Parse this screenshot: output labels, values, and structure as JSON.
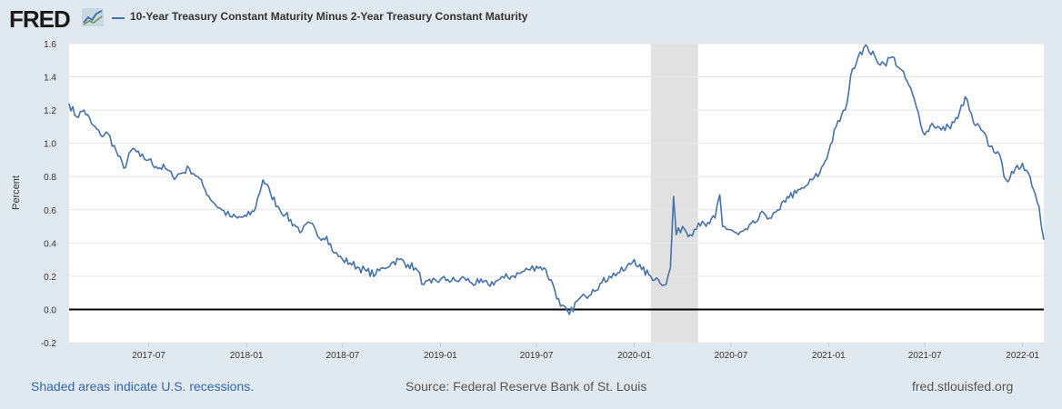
{
  "header": {
    "logo_text": "FRED",
    "logo_icon": "line-chart-icon",
    "legend_label": "10-Year Treasury Constant Maturity Minus 2-Year Treasury Constant Maturity"
  },
  "footer": {
    "recession_note": "Shaded areas indicate U.S. recessions.",
    "source": "Source: Federal Reserve Bank of St. Louis",
    "site": "fred.stlouisfed.org"
  },
  "colors": {
    "background": "#e1e9f0",
    "plot_background": "#ffffff",
    "series": "#4572a7",
    "recession": "#e1e1e1",
    "gridline": "#e6e6e6",
    "zero_line": "#000000"
  },
  "chart_data": {
    "type": "line",
    "title": "",
    "xlabel": "",
    "ylabel": "Percent",
    "ylim": [
      -0.2,
      1.6
    ],
    "xlim": [
      "2017-02-01",
      "2022-02-10"
    ],
    "grid": "horizontal",
    "yticks": [
      "-0.2",
      "0.0",
      "0.2",
      "0.4",
      "0.6",
      "0.8",
      "1.0",
      "1.2",
      "1.4",
      "1.6"
    ],
    "xticks": [
      {
        "date": "2017-07-01",
        "label": "2017-07"
      },
      {
        "date": "2018-01-01",
        "label": "2018-01"
      },
      {
        "date": "2018-07-01",
        "label": "2018-07"
      },
      {
        "date": "2019-01-01",
        "label": "2019-01"
      },
      {
        "date": "2019-07-01",
        "label": "2019-07"
      },
      {
        "date": "2020-01-01",
        "label": "2020-01"
      },
      {
        "date": "2020-07-01",
        "label": "2020-07"
      },
      {
        "date": "2021-01-01",
        "label": "2021-01"
      },
      {
        "date": "2021-07-01",
        "label": "2021-07"
      },
      {
        "date": "2022-01-01",
        "label": "2022-01"
      }
    ],
    "recessions": [
      {
        "start": "2020-02-01",
        "end": "2020-04-30"
      }
    ],
    "reference_line": 0,
    "series": [
      {
        "name": "10-Year Treasury Constant Maturity Minus 2-Year Treasury Constant Maturity",
        "x": [
          "2017-02-01",
          "2017-02-15",
          "2017-03-01",
          "2017-03-15",
          "2017-04-01",
          "2017-04-15",
          "2017-05-01",
          "2017-05-15",
          "2017-06-01",
          "2017-06-15",
          "2017-07-01",
          "2017-07-15",
          "2017-08-01",
          "2017-08-15",
          "2017-09-01",
          "2017-09-15",
          "2017-10-01",
          "2017-10-15",
          "2017-11-01",
          "2017-11-15",
          "2017-12-01",
          "2017-12-15",
          "2018-01-01",
          "2018-01-15",
          "2018-02-01",
          "2018-02-15",
          "2018-03-01",
          "2018-03-15",
          "2018-04-01",
          "2018-04-15",
          "2018-05-01",
          "2018-05-15",
          "2018-06-01",
          "2018-06-15",
          "2018-07-01",
          "2018-07-15",
          "2018-08-01",
          "2018-08-15",
          "2018-09-01",
          "2018-09-15",
          "2018-10-01",
          "2018-10-15",
          "2018-11-01",
          "2018-11-15",
          "2018-12-01",
          "2018-12-15",
          "2019-01-01",
          "2019-01-15",
          "2019-02-01",
          "2019-02-15",
          "2019-03-01",
          "2019-03-15",
          "2019-04-01",
          "2019-04-15",
          "2019-05-01",
          "2019-05-15",
          "2019-06-01",
          "2019-06-15",
          "2019-07-01",
          "2019-07-15",
          "2019-08-01",
          "2019-08-15",
          "2019-09-01",
          "2019-09-15",
          "2019-10-01",
          "2019-10-15",
          "2019-11-01",
          "2019-11-15",
          "2019-12-01",
          "2019-12-15",
          "2020-01-01",
          "2020-01-15",
          "2020-02-01",
          "2020-02-15",
          "2020-03-01",
          "2020-03-09",
          "2020-03-15",
          "2020-03-20",
          "2020-04-01",
          "2020-04-15",
          "2020-05-01",
          "2020-05-15",
          "2020-06-01",
          "2020-06-10",
          "2020-06-15",
          "2020-07-01",
          "2020-07-15",
          "2020-08-01",
          "2020-08-15",
          "2020-09-01",
          "2020-09-15",
          "2020-10-01",
          "2020-10-15",
          "2020-11-01",
          "2020-11-15",
          "2020-12-01",
          "2020-12-15",
          "2021-01-01",
          "2021-01-15",
          "2021-02-01",
          "2021-02-15",
          "2021-03-01",
          "2021-03-15",
          "2021-04-01",
          "2021-04-15",
          "2021-05-01",
          "2021-05-15",
          "2021-06-01",
          "2021-06-15",
          "2021-07-01",
          "2021-07-15",
          "2021-08-01",
          "2021-08-15",
          "2021-09-01",
          "2021-09-15",
          "2021-10-01",
          "2021-10-15",
          "2021-11-01",
          "2021-11-15",
          "2021-12-01",
          "2021-12-15",
          "2022-01-01",
          "2022-01-15",
          "2022-02-01",
          "2022-02-10"
        ],
        "y": [
          1.24,
          1.16,
          1.2,
          1.12,
          1.05,
          1.06,
          0.95,
          0.85,
          0.97,
          0.92,
          0.9,
          0.86,
          0.85,
          0.8,
          0.82,
          0.85,
          0.8,
          0.72,
          0.64,
          0.6,
          0.56,
          0.55,
          0.56,
          0.59,
          0.78,
          0.7,
          0.62,
          0.57,
          0.51,
          0.47,
          0.52,
          0.44,
          0.44,
          0.34,
          0.3,
          0.28,
          0.25,
          0.23,
          0.21,
          0.25,
          0.28,
          0.3,
          0.27,
          0.25,
          0.15,
          0.16,
          0.18,
          0.18,
          0.17,
          0.19,
          0.16,
          0.16,
          0.15,
          0.17,
          0.19,
          0.2,
          0.22,
          0.24,
          0.26,
          0.25,
          0.15,
          0.02,
          -0.03,
          0.05,
          0.08,
          0.12,
          0.16,
          0.2,
          0.22,
          0.24,
          0.3,
          0.24,
          0.2,
          0.18,
          0.15,
          0.25,
          0.68,
          0.45,
          0.5,
          0.45,
          0.52,
          0.5,
          0.55,
          0.69,
          0.5,
          0.48,
          0.45,
          0.48,
          0.52,
          0.58,
          0.55,
          0.6,
          0.68,
          0.7,
          0.73,
          0.78,
          0.82,
          0.95,
          1.1,
          1.2,
          1.45,
          1.55,
          1.58,
          1.5,
          1.48,
          1.52,
          1.45,
          1.35,
          1.22,
          1.05,
          1.12,
          1.08,
          1.1,
          1.15,
          1.28,
          1.12,
          1.08,
          0.98,
          0.95,
          0.78,
          0.82,
          0.88,
          0.8,
          0.62,
          0.42
        ]
      }
    ]
  }
}
